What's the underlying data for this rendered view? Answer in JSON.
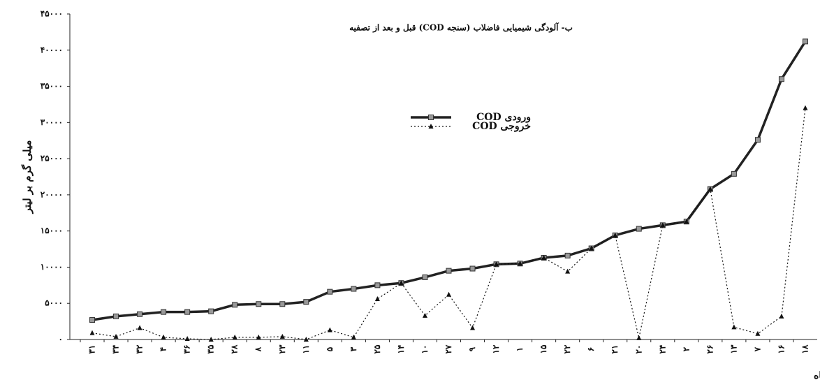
{
  "chart_data": {
    "type": "line",
    "title": "ب- آلودگی شیمیایی فاضلاب (سنجه COD) قبل و بعد از تصفیه",
    "y_label": "میلی گرم بر لیتر",
    "x_label": "کد کشتارگاه",
    "categories": [
      "۳۱",
      "۳۴",
      "۳۲",
      "۴",
      "۳۶",
      "۳۵",
      "۲۸",
      "۸",
      "۲۳",
      "۱۱",
      "۵",
      "۳",
      "۲۵",
      "۱۴",
      "۱۰",
      "۲۷",
      "۹",
      "۱۲",
      "۱",
      "۱۵",
      "۲۲",
      "۶",
      "۲۱",
      "۲۰",
      "۲۴",
      "۲",
      "۲۶",
      "۱۳",
      "۷",
      "۱۶",
      "۱۸"
    ],
    "series": [
      {
        "name": "ورودی COD",
        "color": "#222222",
        "marker_color": "#999999",
        "style": "solid",
        "values": [
          2700,
          3200,
          3500,
          3800,
          3800,
          3900,
          4800,
          4900,
          4900,
          5200,
          6600,
          7000,
          7500,
          7800,
          8600,
          9500,
          9800,
          10400,
          10500,
          11300,
          11600,
          12600,
          14400,
          15300,
          15800,
          16300,
          20800,
          22900,
          27600,
          36000,
          41200
        ]
      },
      {
        "name": "خروجی COD",
        "color": "#111111",
        "marker_color": "#111111",
        "style": "dotted",
        "values": [
          900,
          400,
          1600,
          300,
          100,
          0,
          300,
          300,
          400,
          0,
          1300,
          300,
          5600,
          7800,
          3300,
          6200,
          1600,
          10400,
          10500,
          11300,
          9400,
          12600,
          14400,
          200,
          15800,
          16300,
          20800,
          1700,
          800,
          3200,
          32000
        ]
      }
    ],
    "ylim": [
      0,
      45000
    ],
    "yticks": [
      {
        "value": 0,
        "label": "۰"
      },
      {
        "value": 5000,
        "label": "۵۰۰۰"
      },
      {
        "value": 10000,
        "label": "۱۰۰۰۰"
      },
      {
        "value": 15000,
        "label": "۱۵۰۰۰"
      },
      {
        "value": 20000,
        "label": "۲۰۰۰۰"
      },
      {
        "value": 25000,
        "label": "۲۵۰۰۰"
      },
      {
        "value": 30000,
        "label": "۳۰۰۰۰"
      },
      {
        "value": 35000,
        "label": "۳۵۰۰۰"
      },
      {
        "value": 40000,
        "label": "۴۰۰۰۰"
      },
      {
        "value": 45000,
        "label": "۴۵۰۰۰"
      }
    ],
    "grid": false
  }
}
